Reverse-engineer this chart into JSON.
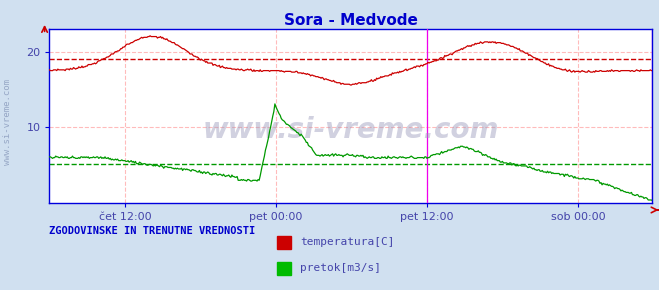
{
  "title": "Sora - Medvode",
  "title_color": "#0000cc",
  "bg_color": "#d0e0f0",
  "plot_bg_color": "#ffffff",
  "tick_color": "#4444aa",
  "grid_color": "#ffbbbb",
  "axis_color": "#0000dd",
  "watermark_text": "www.si-vreme.com",
  "watermark_color": "#9999bb",
  "side_text": "www.si-vreme.com",
  "bottom_label": "ZGODOVINSKE IN TRENUTNE VREDNOSTI",
  "legend_labels": [
    "temperatura[C]",
    "pretok[m3/s]"
  ],
  "legend_colors": [
    "#cc0000",
    "#00bb00"
  ],
  "temp_color": "#cc0000",
  "flow_color": "#009900",
  "vline_color": "#ee00ee",
  "hline_temp_color": "#cc0000",
  "hline_flow_color": "#009900",
  "n_points": 576,
  "ylim": [
    0,
    23
  ],
  "yticks": [
    10,
    20
  ],
  "xlim": [
    0,
    575
  ],
  "xtick_positions": [
    72,
    216,
    360,
    504
  ],
  "xtick_labels": [
    "čet 12:00",
    "pet 00:00",
    "pet 12:00",
    "sob 00:00"
  ],
  "vline_positions": [
    360,
    575
  ],
  "hline_temp_value": 19.0,
  "hline_flow_value": 5.2
}
